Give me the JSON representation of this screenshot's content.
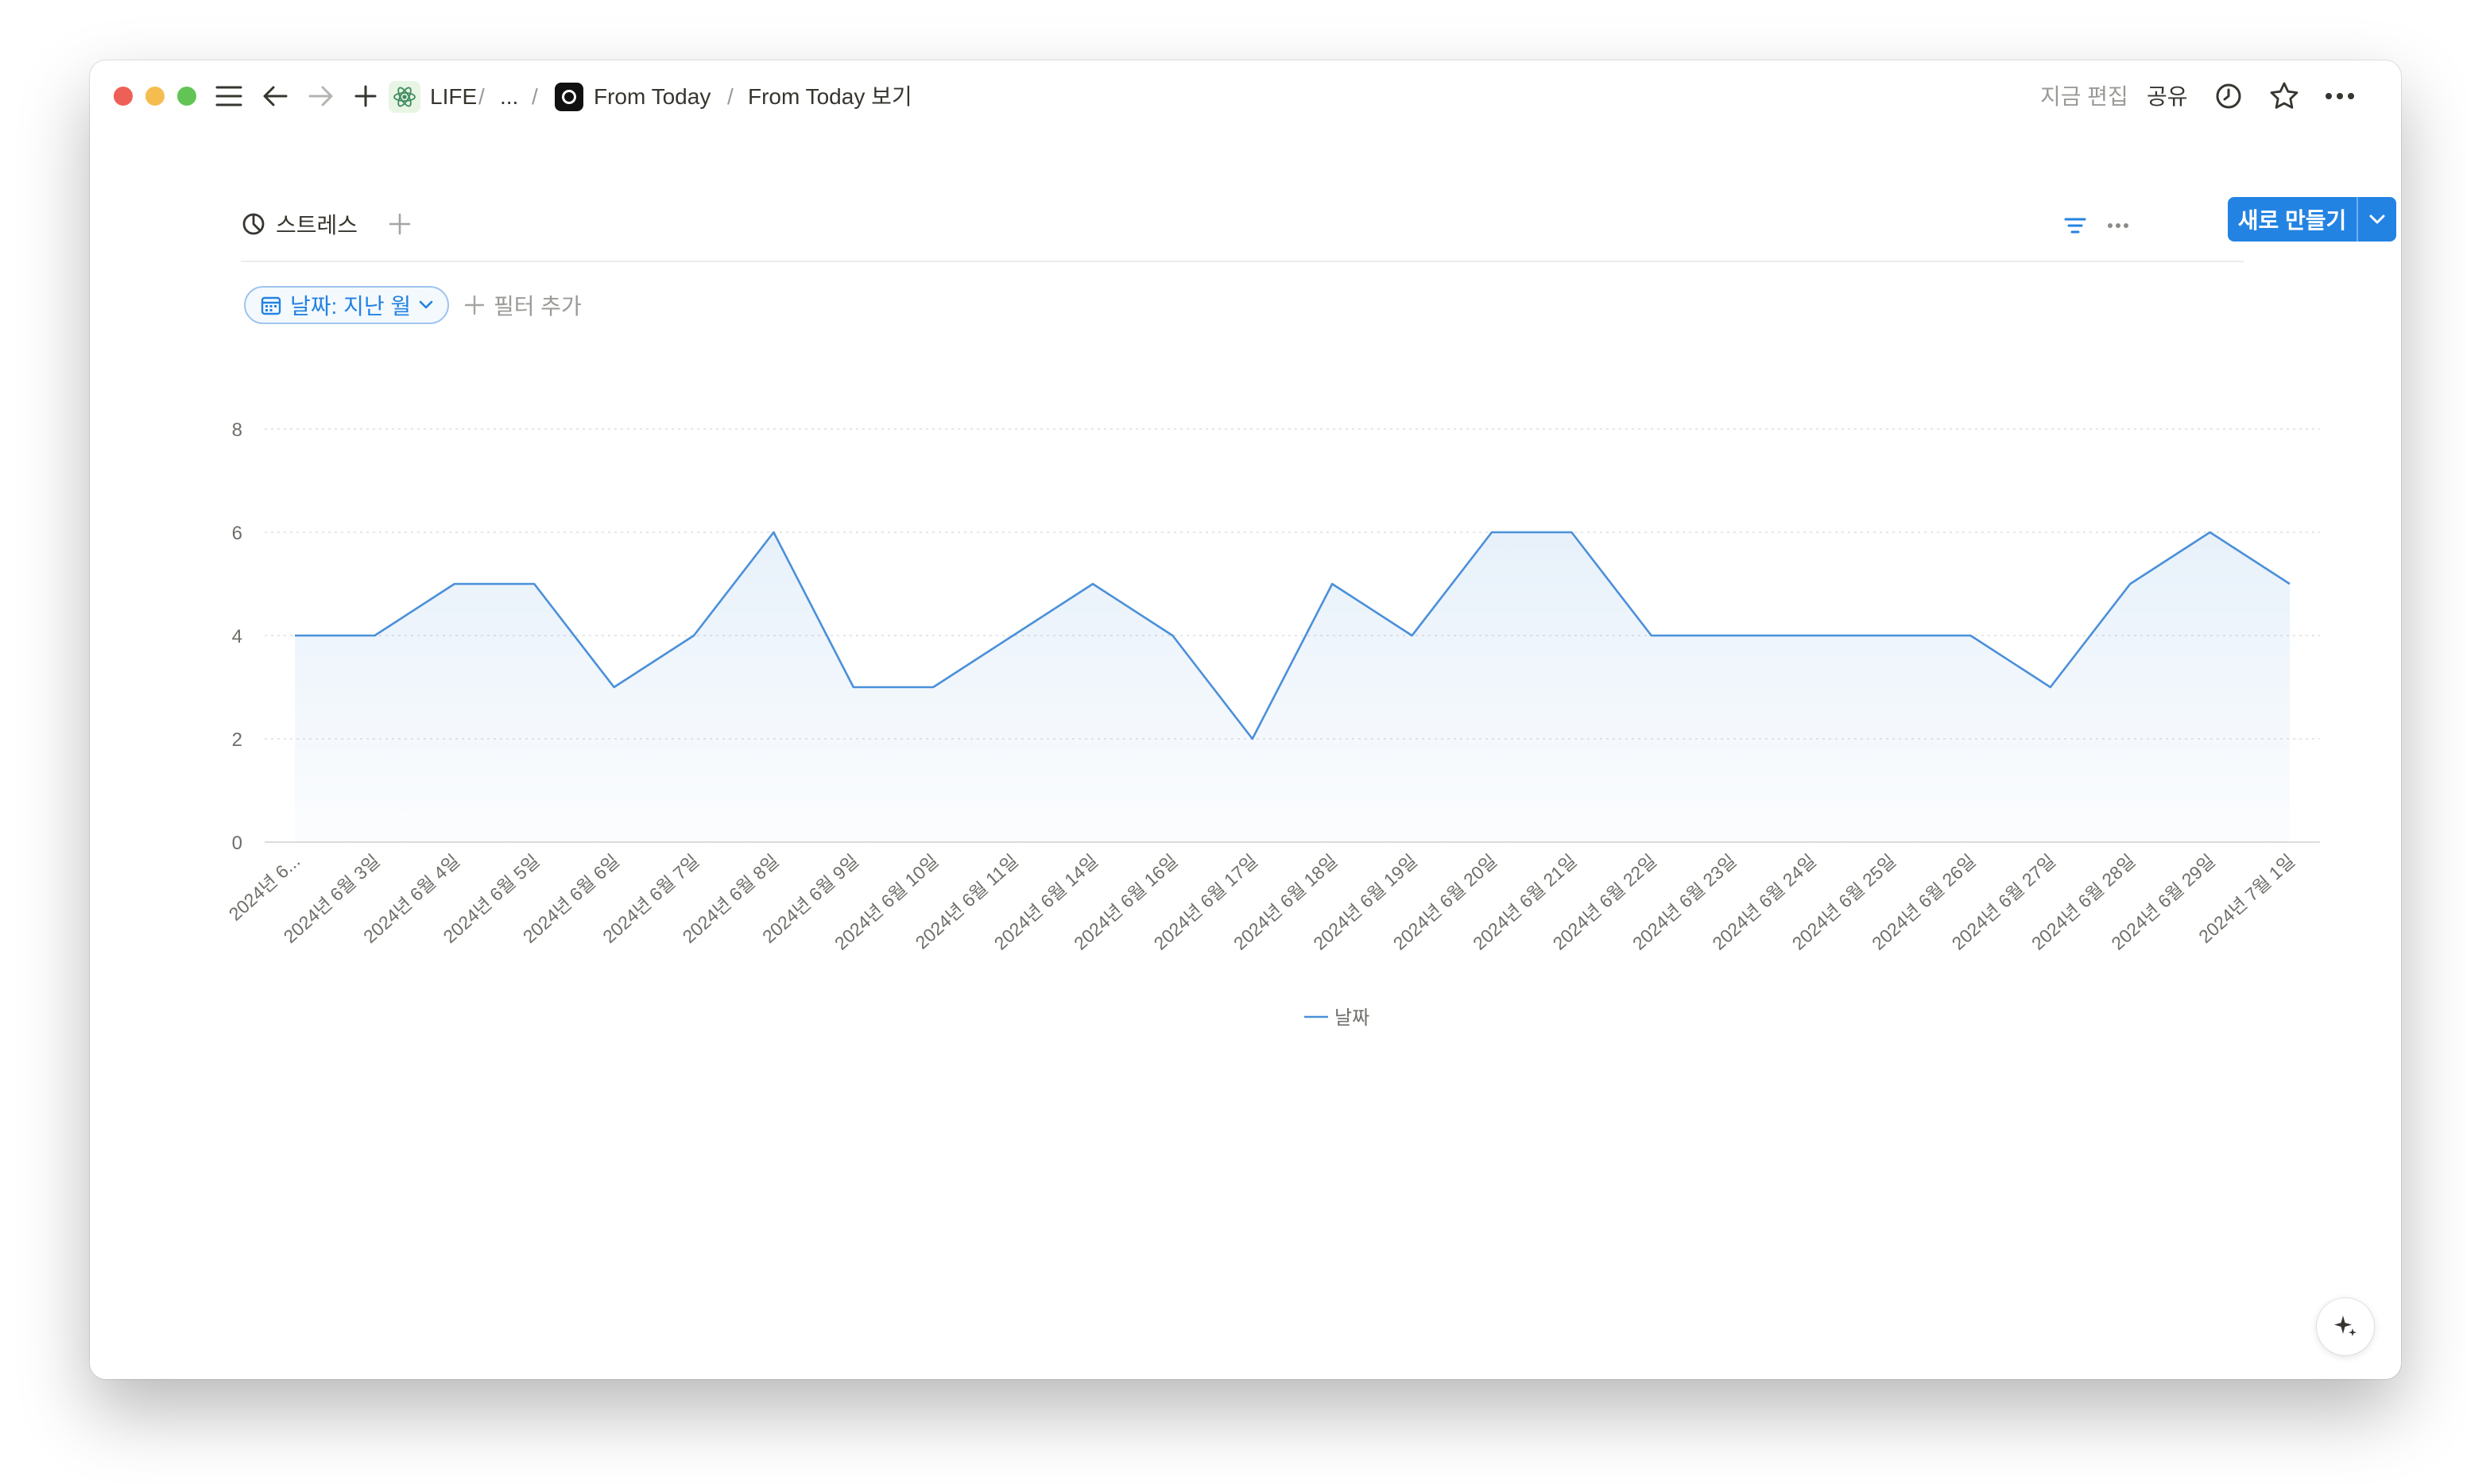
{
  "window": {
    "breadcrumbs": {
      "workspace": "LIFE",
      "sep1": "/",
      "ellipsis": "...",
      "sep2": "/",
      "page": "From Today",
      "sep3": "/",
      "view": "From Today 보기"
    },
    "right": {
      "edited": "지금 편집",
      "share": "공유"
    },
    "icons": {
      "menu": "menu-icon",
      "back": "arrow-left-icon",
      "forward": "arrow-right-icon",
      "new": "plus-icon",
      "workspace": "react-atom-icon",
      "page": "circle-in-square-icon",
      "history": "clock-icon",
      "favorite": "star-icon",
      "more": "more-horizontal-icon"
    }
  },
  "view": {
    "tab_label": "스트레스",
    "new_button_label": "새로 만들기",
    "filter_chip_label": "날짜: 지난 월",
    "add_filter_label": "필터 추가"
  },
  "colors": {
    "accent": "#2383e2",
    "line": "#4a90d9",
    "text": "#37352f",
    "muted": "#9b9a97"
  },
  "chart_data": {
    "type": "area",
    "categories": [
      "2024년 6...",
      "2024년 6월 3일",
      "2024년 6월 4일",
      "2024년 6월 5일",
      "2024년 6월 6일",
      "2024년 6월 7일",
      "2024년 6월 8일",
      "2024년 6월 9일",
      "2024년 6월 10일",
      "2024년 6월 11일",
      "2024년 6월 14일",
      "2024년 6월 16일",
      "2024년 6월 17일",
      "2024년 6월 18일",
      "2024년 6월 19일",
      "2024년 6월 20일",
      "2024년 6월 21일",
      "2024년 6월 22일",
      "2024년 6월 23일",
      "2024년 6월 24일",
      "2024년 6월 25일",
      "2024년 6월 26일",
      "2024년 6월 27일",
      "2024년 6월 28일",
      "2024년 6월 29일",
      "2024년 7월 1일"
    ],
    "series": [
      {
        "name": "날짜",
        "values": [
          4,
          4,
          5,
          5,
          3,
          4,
          6,
          3,
          3,
          4,
          5,
          4,
          2,
          5,
          4,
          6,
          6,
          4,
          4,
          4,
          4,
          4,
          3,
          5,
          6,
          5
        ]
      }
    ],
    "yticks": [
      0,
      2,
      4,
      6,
      8
    ],
    "ylim": [
      0,
      8
    ],
    "grid": true,
    "legend": "bottom-center"
  }
}
